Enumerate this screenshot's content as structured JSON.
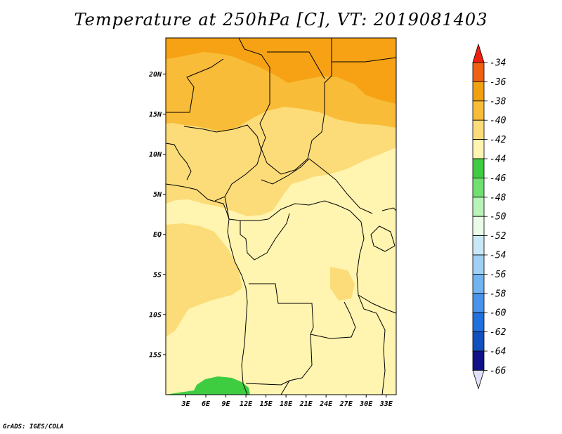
{
  "title": "Temperature at 250hPa [C], VT: 2019081403",
  "credit": "GrADS: IGES/COLA",
  "map": {
    "lon_range": [
      0,
      34.5
    ],
    "lat_range": [
      -20,
      24.5
    ],
    "lat_ticks": [
      {
        "value": 20,
        "label": "20N"
      },
      {
        "value": 15,
        "label": "15N"
      },
      {
        "value": 10,
        "label": "10N"
      },
      {
        "value": 5,
        "label": "5N"
      },
      {
        "value": 0,
        "label": "EQ"
      },
      {
        "value": -5,
        "label": "5S"
      },
      {
        "value": -10,
        "label": "10S"
      },
      {
        "value": -15,
        "label": "15S"
      }
    ],
    "lon_ticks": [
      {
        "value": 3,
        "label": "3E"
      },
      {
        "value": 6,
        "label": "6E"
      },
      {
        "value": 9,
        "label": "9E"
      },
      {
        "value": 12,
        "label": "12E"
      },
      {
        "value": 15,
        "label": "15E"
      },
      {
        "value": 18,
        "label": "18E"
      },
      {
        "value": 21,
        "label": "21E"
      },
      {
        "value": 24,
        "label": "24E"
      },
      {
        "value": 27,
        "label": "27E"
      },
      {
        "value": 30,
        "label": "30E"
      },
      {
        "value": 33,
        "label": "33E"
      }
    ]
  },
  "colorbar": {
    "labels": [
      "-34",
      "-36",
      "-38",
      "-40",
      "-42",
      "-44",
      "-46",
      "-48",
      "-50",
      "-52",
      "-54",
      "-56",
      "-58",
      "-60",
      "-62",
      "-64",
      "-66"
    ],
    "colors": [
      "#f04010",
      "#f06010",
      "#f0a010",
      "#f8bc38",
      "#fcdc78",
      "#fff4b0",
      "#40cc40",
      "#70e070",
      "#b8f4b8",
      "#e8fce8",
      "#c8e8f8",
      "#a0d0f4",
      "#70b4f0",
      "#4894ec",
      "#2070e0",
      "#1050c0",
      "#101088"
    ],
    "top_arrow_color": "#f02010",
    "bottom_arrow_color": "#e0e0f8"
  },
  "field_colors": {
    "t_-36": "#f6a214",
    "t_-38": "#f8bc38",
    "t_-40": "#fcdc78",
    "t_-42": "#fff4b0",
    "t_-44": "#3ecc40"
  }
}
